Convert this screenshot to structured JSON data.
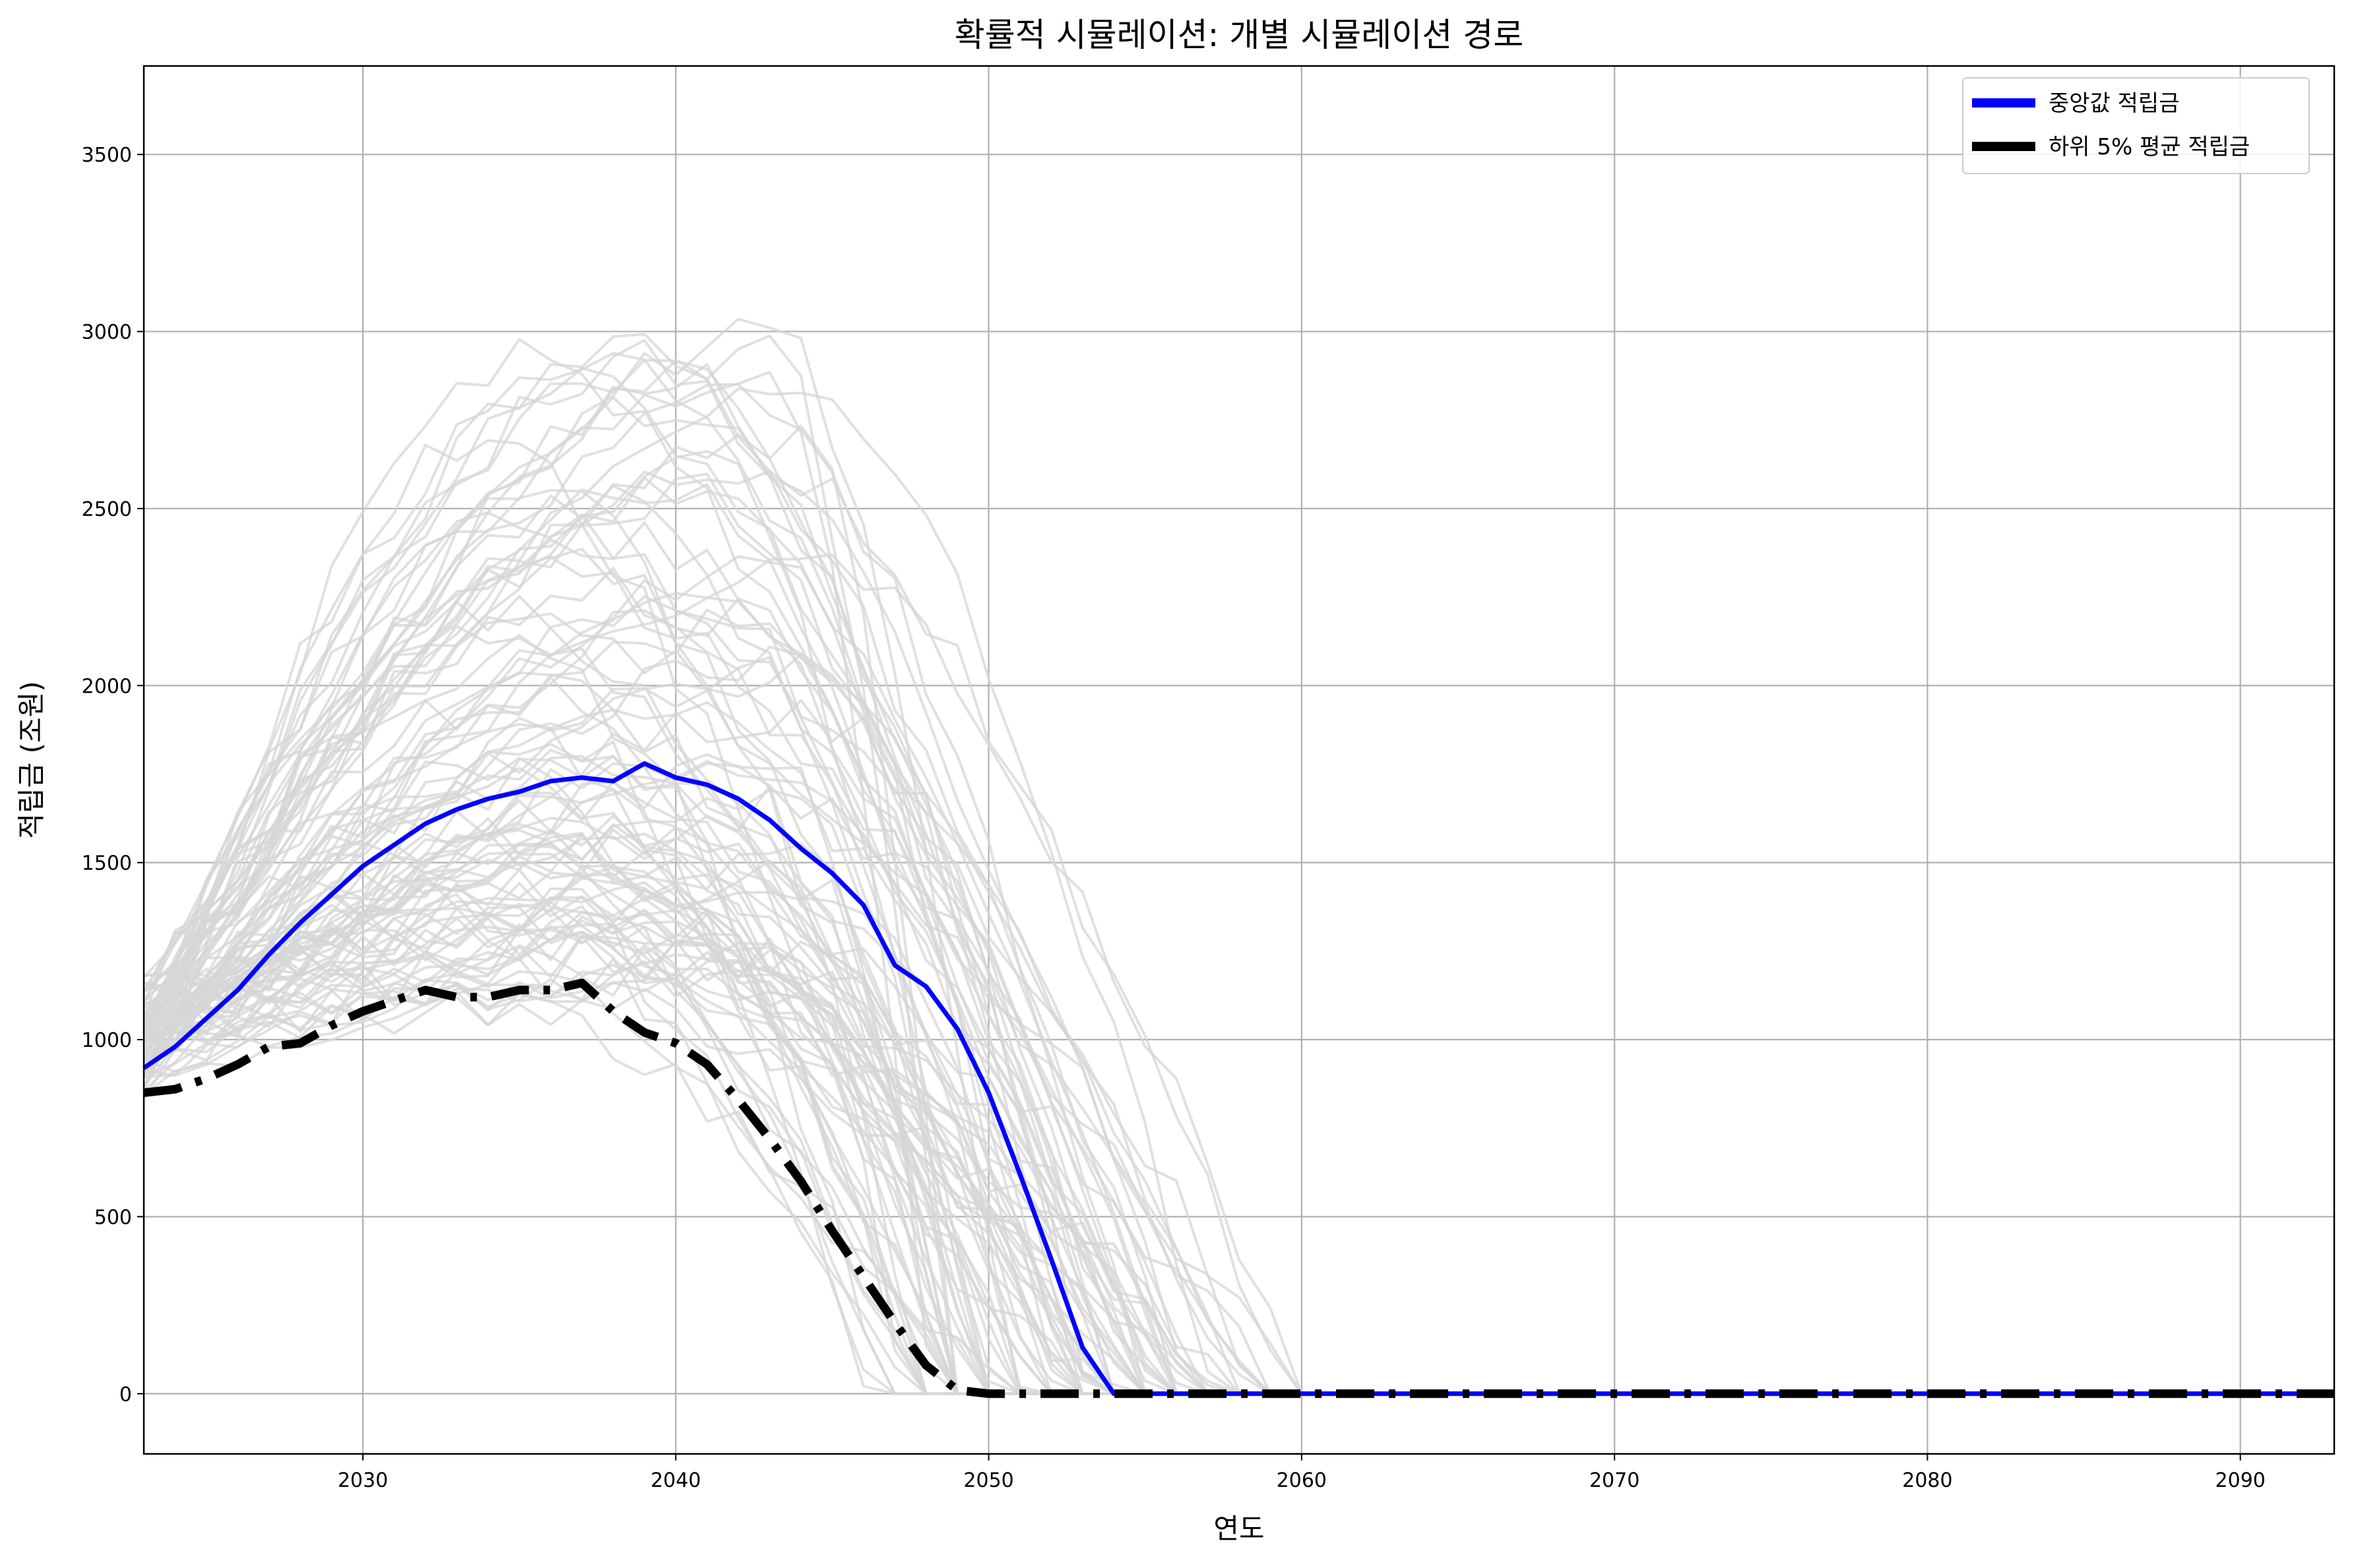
{
  "chart_data": {
    "type": "line",
    "title": "확률적 시뮬레이션: 개별 시뮬레이션 경로",
    "xlabel": "연도",
    "ylabel": "적립금 (조원)",
    "xlim": [
      2023,
      2093
    ],
    "ylim": [
      -170,
      3750
    ],
    "x_ticks": [
      2030,
      2040,
      2050,
      2060,
      2070,
      2080,
      2090
    ],
    "y_ticks": [
      0,
      500,
      1000,
      1500,
      2000,
      2500,
      3000,
      3500
    ],
    "grid": true,
    "legend_position": "top-right",
    "colors": {
      "median": "#0000ff",
      "lower5": "#000000",
      "paths": "#d6d6d6",
      "grid": "#b0b0b0"
    },
    "series": [
      {
        "name": "중앙값 적립금",
        "style": "solid",
        "x": [
          2023,
          2024,
          2025,
          2026,
          2027,
          2028,
          2029,
          2030,
          2031,
          2032,
          2033,
          2034,
          2035,
          2036,
          2037,
          2038,
          2039,
          2040,
          2041,
          2042,
          2043,
          2044,
          2045,
          2046,
          2047,
          2048,
          2049,
          2050,
          2051,
          2052,
          2053,
          2054,
          2055,
          2060,
          2070,
          2080,
          2093
        ],
        "values": [
          920,
          980,
          1060,
          1140,
          1240,
          1330,
          1410,
          1490,
          1550,
          1610,
          1650,
          1680,
          1700,
          1730,
          1740,
          1730,
          1780,
          1740,
          1720,
          1680,
          1620,
          1540,
          1470,
          1380,
          1210,
          1150,
          1030,
          850,
          620,
          380,
          130,
          0,
          0,
          0,
          0,
          0,
          0
        ]
      },
      {
        "name": "하위 5% 평균 적립금",
        "style": "dashdot",
        "x": [
          2023,
          2024,
          2025,
          2026,
          2027,
          2028,
          2029,
          2030,
          2031,
          2032,
          2033,
          2034,
          2035,
          2036,
          2037,
          2038,
          2039,
          2040,
          2041,
          2042,
          2043,
          2044,
          2045,
          2046,
          2047,
          2048,
          2049,
          2050,
          2051,
          2060,
          2070,
          2080,
          2093
        ],
        "values": [
          850,
          860,
          890,
          930,
          980,
          990,
          1040,
          1080,
          1110,
          1140,
          1120,
          1120,
          1140,
          1140,
          1160,
          1080,
          1020,
          990,
          930,
          830,
          720,
          600,
          460,
          330,
          200,
          80,
          10,
          0,
          0,
          0,
          0,
          0,
          0
        ]
      }
    ]
  }
}
